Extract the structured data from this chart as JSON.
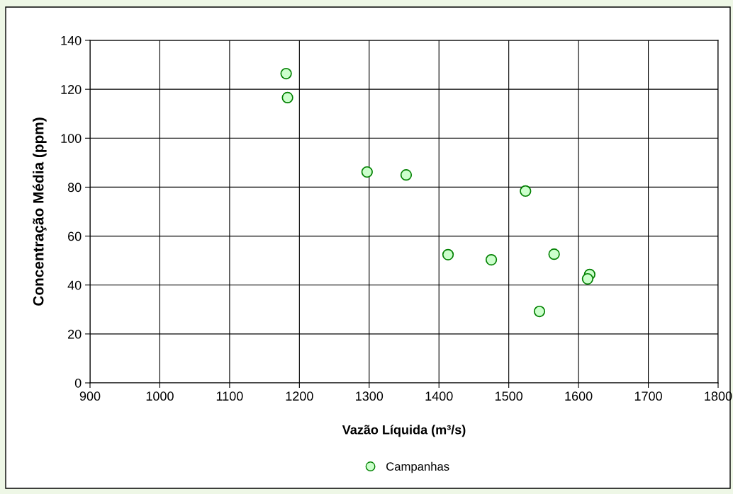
{
  "chart_data": {
    "type": "scatter",
    "xlabel": "Vazão Líquida (m³/s)",
    "ylabel": "Concentração Média (ppm)",
    "xlim": [
      900,
      1800
    ],
    "xticks": [
      900,
      1000,
      1100,
      1200,
      1300,
      1400,
      1500,
      1600,
      1700,
      1800
    ],
    "ylim": [
      0,
      140
    ],
    "yticks": [
      0,
      20,
      40,
      60,
      80,
      100,
      120,
      140
    ],
    "grid": true,
    "legend": "bottom",
    "marker": "circle",
    "series": [
      {
        "name": "Campanhas",
        "color": "#ccffcc",
        "x": [
          1181,
          1183,
          1297,
          1353,
          1413,
          1475,
          1524,
          1544,
          1565,
          1616,
          1613
        ],
        "values": [
          126.4,
          116.6,
          86.2,
          85,
          52.4,
          50.3,
          78.4,
          29.2,
          52.6,
          44.3,
          42.5
        ]
      }
    ]
  }
}
